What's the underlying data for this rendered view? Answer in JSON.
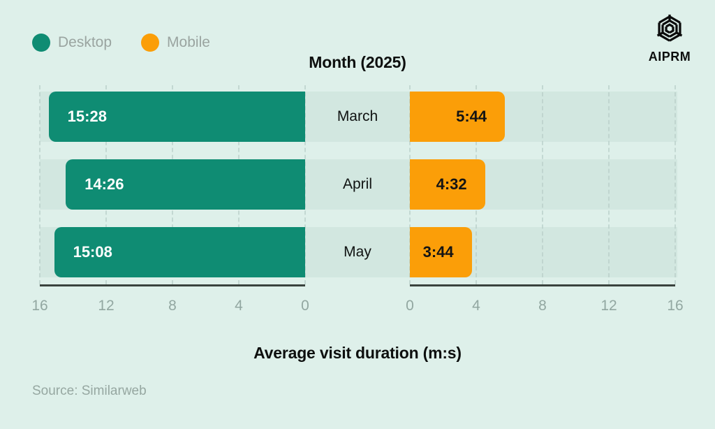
{
  "page": {
    "background": "#def0ea"
  },
  "legend": {
    "items": [
      {
        "label": "Desktop",
        "color": "#0f8c73"
      },
      {
        "label": "Mobile",
        "color": "#fb9e08"
      }
    ]
  },
  "brand": {
    "name": "AIPRM"
  },
  "chart_data": {
    "type": "bar",
    "variant": "bidirectional-horizontal",
    "title": "Month (2025)",
    "xlabel": "Average visit duration (m:s)",
    "categories": [
      "March",
      "April",
      "May"
    ],
    "series": [
      {
        "name": "Desktop",
        "side": "left",
        "color": "#0f8c73",
        "labels": [
          "15:28",
          "14:26",
          "15:08"
        ],
        "values_minutes": [
          15.4667,
          14.4333,
          15.1333
        ]
      },
      {
        "name": "Mobile",
        "side": "right",
        "color": "#fb9e08",
        "labels": [
          "5:44",
          "4:32",
          "3:44"
        ],
        "values_minutes": [
          5.7333,
          4.5333,
          3.7333
        ]
      }
    ],
    "axis": {
      "max": 16,
      "left_ticks": [
        16,
        12,
        8,
        4,
        0
      ],
      "right_ticks": [
        0,
        4,
        8,
        12,
        16
      ],
      "grid": "dashed"
    },
    "source": "Source: Similarweb"
  }
}
